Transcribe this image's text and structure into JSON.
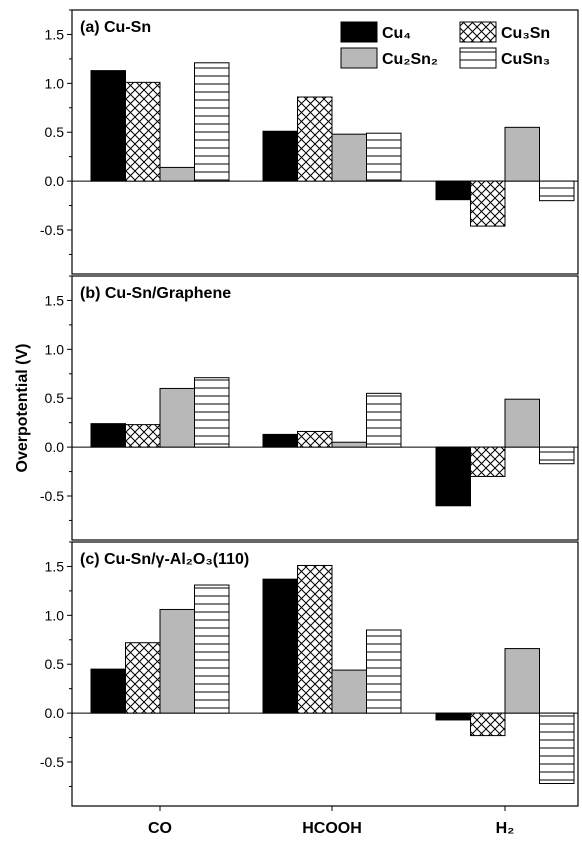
{
  "chart_data": {
    "type": "bar",
    "ylabel": "Overpotential (V)",
    "categories": [
      "CO",
      "HCOOH",
      "H₂"
    ],
    "legend": [
      {
        "name": "Cu₄",
        "pattern": "solid-black"
      },
      {
        "name": "Cu₃Sn",
        "pattern": "crosshatch"
      },
      {
        "name": "Cu₂Sn₂",
        "pattern": "solid-gray"
      },
      {
        "name": "CuSn₃",
        "pattern": "horizontal-lines"
      }
    ],
    "colors": {
      "black": "#000000",
      "gray": "#b8b8b8",
      "frame": "#000000"
    },
    "panels": [
      {
        "title": "(a) Cu-Sn",
        "ylim": [
          -0.95,
          1.75
        ],
        "yticks": [
          "-0.5",
          "0.0",
          "0.5",
          "1.0",
          "1.5"
        ],
        "series": [
          {
            "name": "Cu₄",
            "values": [
              1.13,
              0.51,
              -0.19
            ]
          },
          {
            "name": "Cu₃Sn",
            "values": [
              1.01,
              0.86,
              -0.46
            ]
          },
          {
            "name": "Cu₂Sn₂",
            "values": [
              0.14,
              0.48,
              0.55
            ]
          },
          {
            "name": "CuSn₃",
            "values": [
              1.21,
              0.49,
              -0.2
            ]
          }
        ]
      },
      {
        "title": "(b) Cu-Sn/Graphene",
        "ylim": [
          -0.95,
          1.75
        ],
        "yticks": [
          "-0.5",
          "0.0",
          "0.5",
          "1.0",
          "1.5"
        ],
        "series": [
          {
            "name": "Cu₄",
            "values": [
              0.24,
              0.13,
              -0.6
            ]
          },
          {
            "name": "Cu₃Sn",
            "values": [
              0.23,
              0.16,
              -0.3
            ]
          },
          {
            "name": "Cu₂Sn₂",
            "values": [
              0.6,
              0.05,
              0.49
            ]
          },
          {
            "name": "CuSn₃",
            "values": [
              0.71,
              0.55,
              -0.17
            ]
          }
        ]
      },
      {
        "title": "(c) Cu-Sn/γ-Al₂O₃(110)",
        "ylim": [
          -0.95,
          1.75
        ],
        "yticks": [
          "-0.5",
          "0.0",
          "0.5",
          "1.0",
          "1.5"
        ],
        "series": [
          {
            "name": "Cu₄",
            "values": [
              0.45,
              1.37,
              -0.07
            ]
          },
          {
            "name": "Cu₃Sn",
            "values": [
              0.72,
              1.51,
              -0.23
            ]
          },
          {
            "name": "Cu₂Sn₂",
            "values": [
              1.06,
              0.44,
              0.66
            ]
          },
          {
            "name": "CuSn₃",
            "values": [
              1.31,
              0.85,
              -0.72
            ]
          }
        ]
      }
    ]
  }
}
